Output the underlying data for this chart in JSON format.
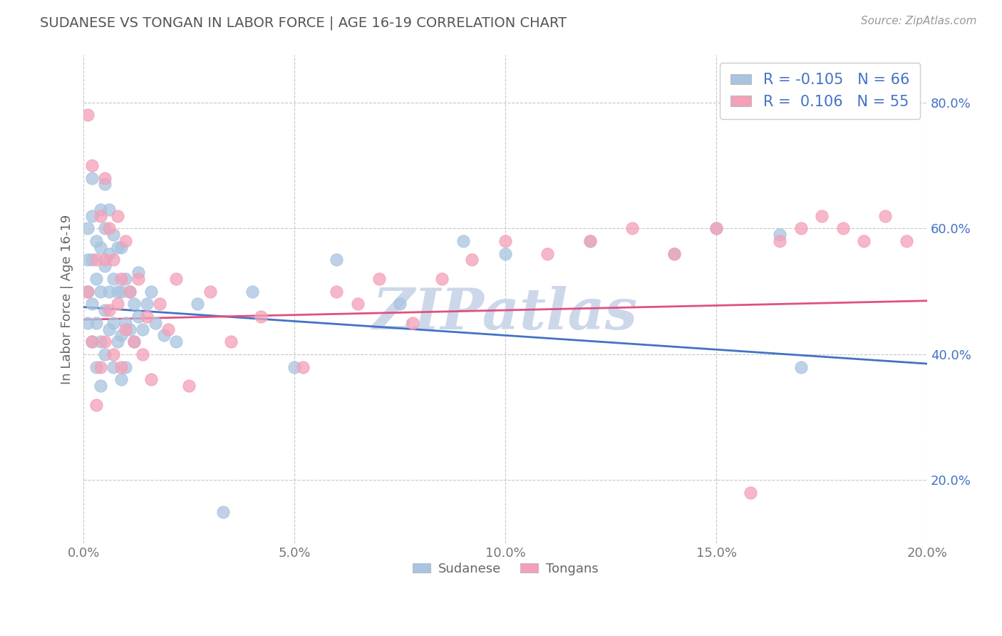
{
  "title": "SUDANESE VS TONGAN IN LABOR FORCE | AGE 16-19 CORRELATION CHART",
  "source_text": "Source: ZipAtlas.com",
  "ylabel": "In Labor Force | Age 16-19",
  "xlim": [
    0.0,
    0.2
  ],
  "ylim": [
    0.1,
    0.875
  ],
  "xtick_labels": [
    "0.0%",
    "",
    "5.0%",
    "",
    "10.0%",
    "",
    "15.0%",
    "",
    "20.0%"
  ],
  "xtick_vals": [
    0.0,
    0.025,
    0.05,
    0.075,
    0.1,
    0.125,
    0.15,
    0.175,
    0.2
  ],
  "xtick_display": [
    "0.0%",
    "5.0%",
    "10.0%",
    "15.0%",
    "20.0%"
  ],
  "xtick_display_vals": [
    0.0,
    0.05,
    0.1,
    0.15,
    0.2
  ],
  "ytick_labels": [
    "20.0%",
    "40.0%",
    "60.0%",
    "80.0%"
  ],
  "ytick_vals": [
    0.2,
    0.4,
    0.6,
    0.8
  ],
  "legend_labels": [
    "Sudanese",
    "Tongans"
  ],
  "R_sudanese": -0.105,
  "N_sudanese": 66,
  "R_tongan": 0.106,
  "N_tongan": 55,
  "sudanese_color": "#a8c4e0",
  "tongan_color": "#f4a0b8",
  "sudanese_line_color": "#4472c4",
  "tongan_line_color": "#e05080",
  "background_color": "#ffffff",
  "plot_bg_color": "#ffffff",
  "grid_color": "#b8b8b8",
  "watermark_text": "ZIPatlas",
  "watermark_color": "#ccd8ea",
  "title_color": "#555555",
  "ytick_color": "#4472c4",
  "sudanese_scatter_x": [
    0.001,
    0.001,
    0.001,
    0.001,
    0.002,
    0.002,
    0.002,
    0.002,
    0.002,
    0.003,
    0.003,
    0.003,
    0.003,
    0.004,
    0.004,
    0.004,
    0.004,
    0.004,
    0.005,
    0.005,
    0.005,
    0.005,
    0.005,
    0.006,
    0.006,
    0.006,
    0.006,
    0.007,
    0.007,
    0.007,
    0.007,
    0.008,
    0.008,
    0.008,
    0.009,
    0.009,
    0.009,
    0.009,
    0.01,
    0.01,
    0.01,
    0.011,
    0.011,
    0.012,
    0.012,
    0.013,
    0.013,
    0.014,
    0.015,
    0.016,
    0.017,
    0.019,
    0.022,
    0.027,
    0.033,
    0.04,
    0.05,
    0.06,
    0.075,
    0.09,
    0.1,
    0.12,
    0.14,
    0.15,
    0.165,
    0.17
  ],
  "sudanese_scatter_y": [
    0.45,
    0.5,
    0.55,
    0.6,
    0.42,
    0.48,
    0.55,
    0.62,
    0.68,
    0.38,
    0.45,
    0.52,
    0.58,
    0.35,
    0.42,
    0.5,
    0.57,
    0.63,
    0.4,
    0.47,
    0.54,
    0.6,
    0.67,
    0.44,
    0.5,
    0.56,
    0.63,
    0.38,
    0.45,
    0.52,
    0.59,
    0.42,
    0.5,
    0.57,
    0.36,
    0.43,
    0.5,
    0.57,
    0.38,
    0.45,
    0.52,
    0.44,
    0.5,
    0.42,
    0.48,
    0.46,
    0.53,
    0.44,
    0.48,
    0.5,
    0.45,
    0.43,
    0.42,
    0.48,
    0.15,
    0.5,
    0.38,
    0.55,
    0.48,
    0.58,
    0.56,
    0.58,
    0.56,
    0.6,
    0.59,
    0.38
  ],
  "tongan_scatter_x": [
    0.001,
    0.001,
    0.002,
    0.002,
    0.003,
    0.003,
    0.004,
    0.004,
    0.005,
    0.005,
    0.005,
    0.006,
    0.006,
    0.007,
    0.007,
    0.008,
    0.008,
    0.009,
    0.009,
    0.01,
    0.01,
    0.011,
    0.012,
    0.013,
    0.014,
    0.015,
    0.016,
    0.018,
    0.02,
    0.022,
    0.025,
    0.03,
    0.035,
    0.042,
    0.052,
    0.06,
    0.065,
    0.07,
    0.078,
    0.085,
    0.092,
    0.1,
    0.11,
    0.12,
    0.13,
    0.14,
    0.15,
    0.158,
    0.165,
    0.17,
    0.175,
    0.18,
    0.185,
    0.19,
    0.195
  ],
  "tongan_scatter_y": [
    0.78,
    0.5,
    0.7,
    0.42,
    0.55,
    0.32,
    0.62,
    0.38,
    0.68,
    0.55,
    0.42,
    0.6,
    0.47,
    0.55,
    0.4,
    0.62,
    0.48,
    0.52,
    0.38,
    0.58,
    0.44,
    0.5,
    0.42,
    0.52,
    0.4,
    0.46,
    0.36,
    0.48,
    0.44,
    0.52,
    0.35,
    0.5,
    0.42,
    0.46,
    0.38,
    0.5,
    0.48,
    0.52,
    0.45,
    0.52,
    0.55,
    0.58,
    0.56,
    0.58,
    0.6,
    0.56,
    0.6,
    0.18,
    0.58,
    0.6,
    0.62,
    0.6,
    0.58,
    0.62,
    0.58
  ],
  "trend_sud_y0": 0.475,
  "trend_sud_y1": 0.385,
  "trend_ton_y0": 0.455,
  "trend_ton_y1": 0.485
}
